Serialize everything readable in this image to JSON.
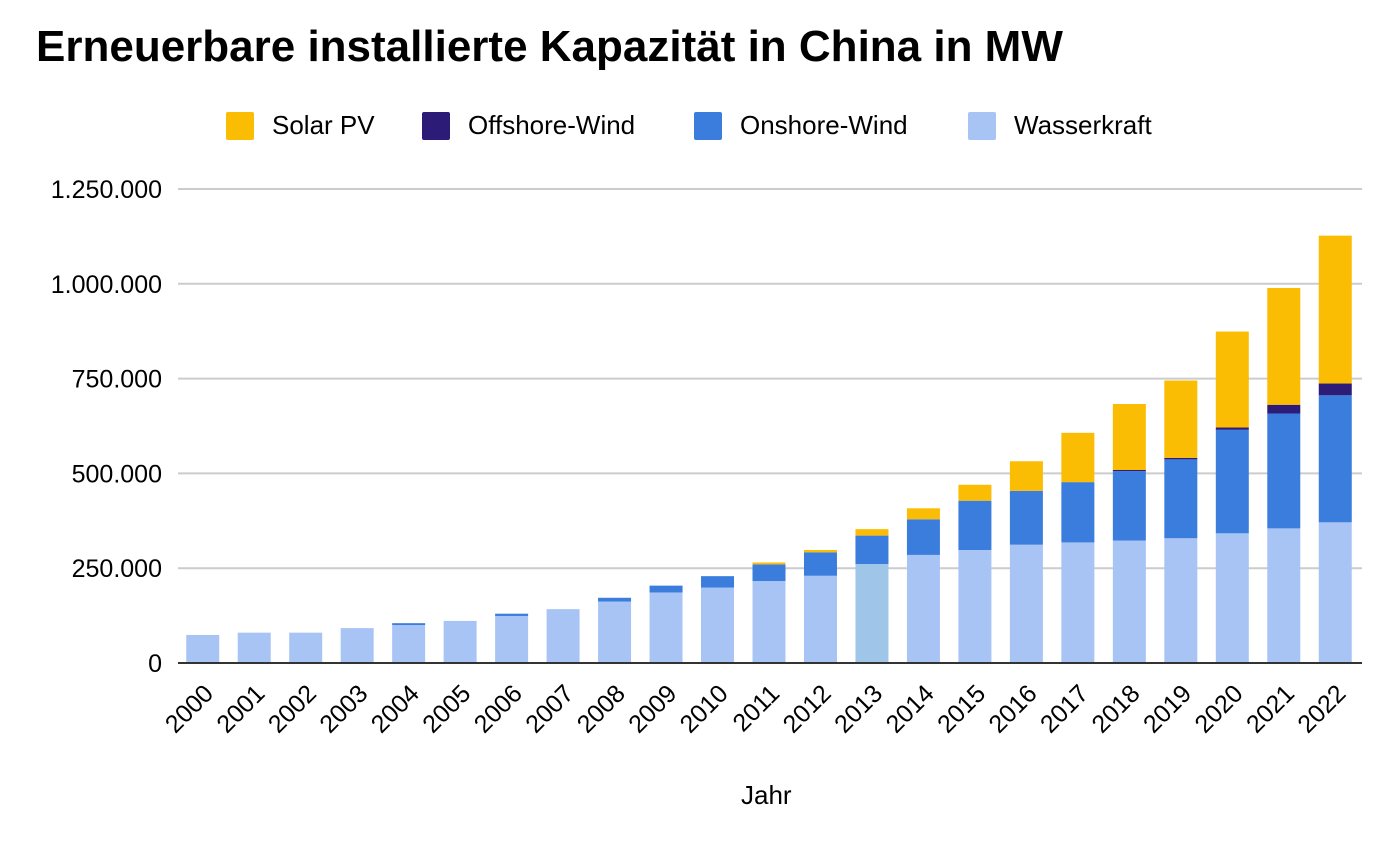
{
  "chart_data": {
    "type": "bar",
    "stacked": true,
    "title": "Erneuerbare installierte Kapazität in China in MW",
    "xlabel": "Jahr",
    "ylabel": "",
    "ylim": [
      0,
      1250000
    ],
    "yticks": [
      0,
      250000,
      500000,
      750000,
      1000000,
      1250000
    ],
    "ytick_labels": [
      "0",
      "250.000",
      "500.000",
      "750.000",
      "1.000.000",
      "1.250.000"
    ],
    "grid": true,
    "legend_position": "top",
    "categories": [
      "2000",
      "2001",
      "2002",
      "2003",
      "2004",
      "2005",
      "2006",
      "2007",
      "2008",
      "2009",
      "2010",
      "2011",
      "2012",
      "2013",
      "2014",
      "2015",
      "2016",
      "2017",
      "2018",
      "2019",
      "2020",
      "2021",
      "2022"
    ],
    "series": [
      {
        "name": "Wasserkraft",
        "color": "#a8c4f5",
        "values": [
          74000,
          80000,
          80000,
          92000,
          100000,
          111000,
          124000,
          142000,
          162000,
          186000,
          199000,
          216000,
          230000,
          261000,
          285000,
          298000,
          312000,
          318000,
          323000,
          329000,
          342000,
          355000,
          371000
        ]
      },
      {
        "name": "Onshore-Wind",
        "color": "#3b7ddd",
        "values": [
          0,
          0,
          0,
          0,
          5000,
          0,
          6000,
          0,
          10000,
          18000,
          30000,
          44000,
          62000,
          75000,
          94000,
          130000,
          142000,
          159000,
          183000,
          208000,
          273000,
          303000,
          335000
        ]
      },
      {
        "name": "Offshore-Wind",
        "color": "#2d1b78",
        "values": [
          0,
          0,
          0,
          0,
          0,
          0,
          0,
          0,
          0,
          0,
          0,
          0,
          0,
          0,
          0,
          0,
          0,
          0,
          3000,
          4000,
          6000,
          23000,
          31000
        ]
      },
      {
        "name": "Solar PV",
        "color": "#fbbc04",
        "values": [
          0,
          0,
          0,
          0,
          0,
          0,
          0,
          0,
          0,
          0,
          0,
          5000,
          6000,
          17000,
          29000,
          42000,
          78000,
          130000,
          174000,
          204000,
          253000,
          308000,
          390000
        ]
      }
    ],
    "legend_order": [
      "Solar PV",
      "Offshore-Wind",
      "Onshore-Wind",
      "Wasserkraft"
    ],
    "highlight": {
      "category": "2013",
      "series": "Wasserkraft",
      "color": "#9fc5e8"
    }
  }
}
